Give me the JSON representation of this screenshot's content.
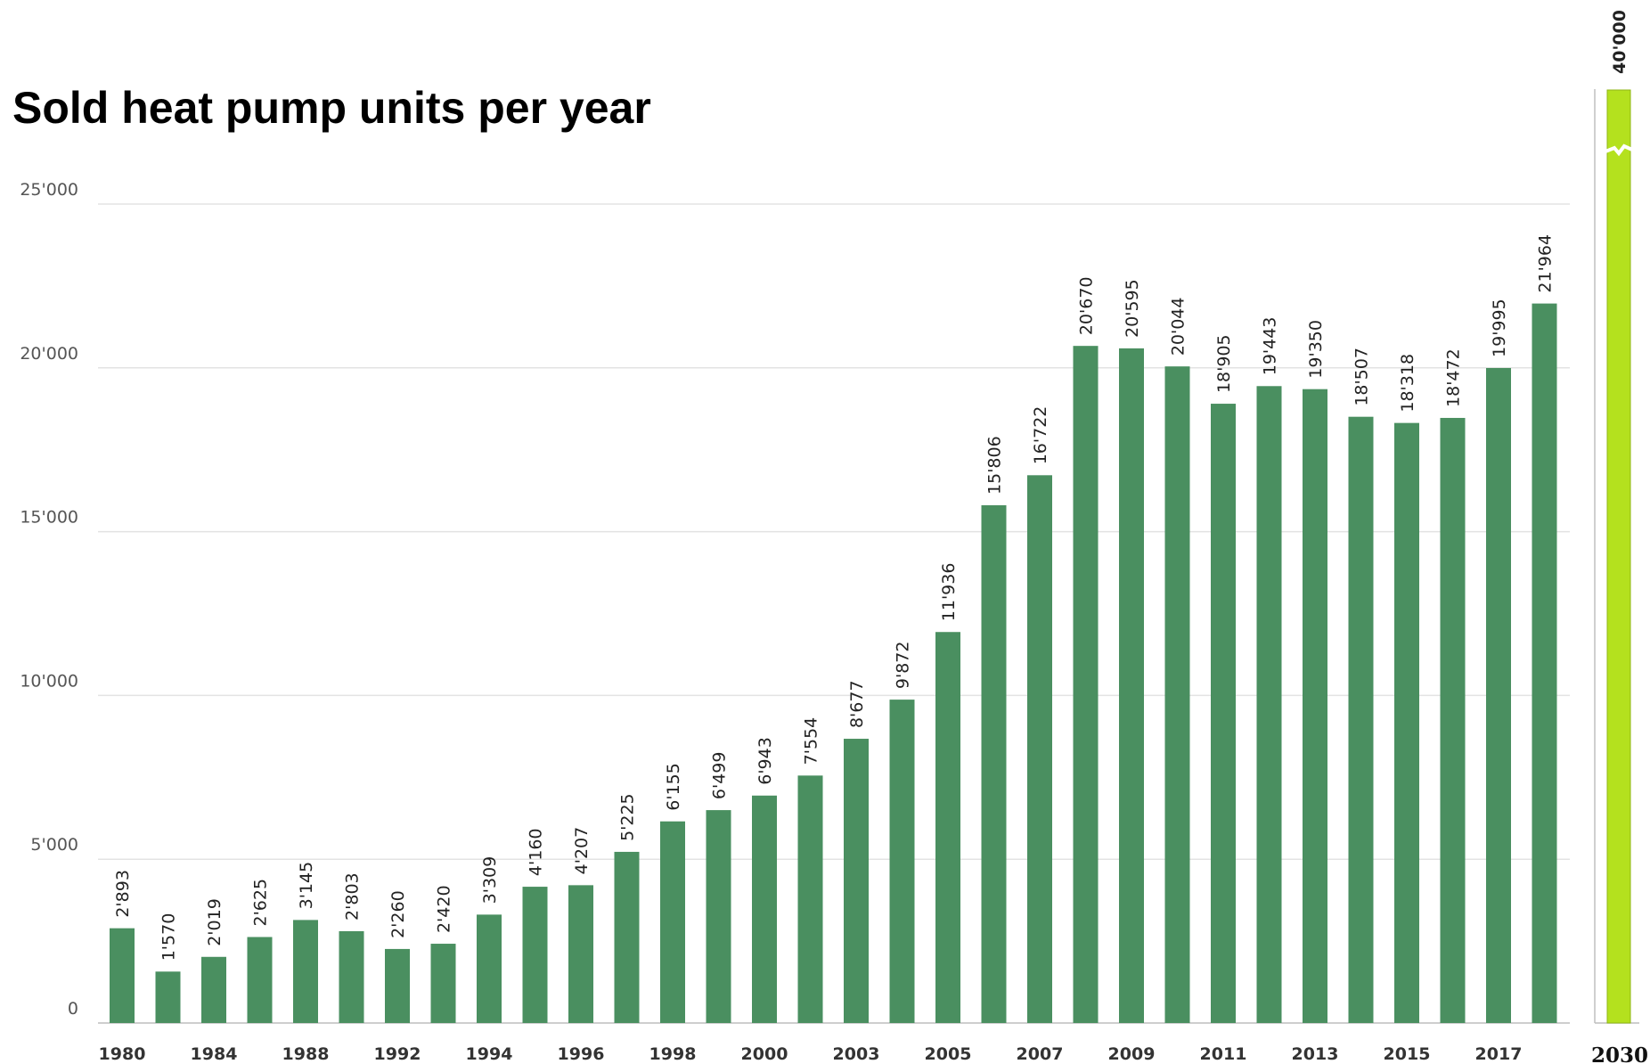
{
  "title": "Sold heat pump units per year",
  "colors": {
    "bar": "#4a8f60",
    "target_bar": "#b4e11e",
    "grid": "#e3e3e3"
  },
  "chart_data": [
    {
      "type": "bar",
      "title": "Sold heat pump units per year",
      "xlabel": "",
      "ylabel": "",
      "ylim": [
        0,
        25000
      ],
      "grid": true,
      "y_ticks": [
        "0",
        "5'000",
        "10'000",
        "15'000",
        "20'000",
        "25'000"
      ],
      "x_tick_labels": [
        "1980",
        "1984",
        "1988",
        "1992",
        "1994",
        "1996",
        "1998",
        "2000",
        "2003",
        "2005",
        "2007",
        "2009",
        "2011",
        "2013",
        "2015",
        "2017"
      ],
      "values": [
        2893,
        1570,
        2019,
        2625,
        3145,
        2803,
        2260,
        2420,
        3309,
        4160,
        4207,
        5225,
        6155,
        6499,
        6943,
        7554,
        8677,
        9872,
        11936,
        15806,
        16722,
        20670,
        20595,
        20044,
        18905,
        19443,
        19350,
        18507,
        18318,
        18472,
        19995,
        21964
      ],
      "value_labels": [
        "2'893",
        "1'570",
        "2'019",
        "2'625",
        "3'145",
        "2'803",
        "2'260",
        "2'420",
        "3'309",
        "4'160",
        "4'207",
        "5'225",
        "6'155",
        "6'499",
        "6'943",
        "7'554",
        "8'677",
        "9'872",
        "11'936",
        "15'806",
        "16'722",
        "20'670",
        "20'595",
        "20'044",
        "18'905",
        "19'443",
        "19'350",
        "18'507",
        "18'318",
        "18'472",
        "19'995",
        "21'964"
      ]
    },
    {
      "type": "bar",
      "categories": [
        "2030"
      ],
      "values": [
        40000
      ],
      "value_labels": [
        "40'000"
      ],
      "axis_break": true
    }
  ]
}
